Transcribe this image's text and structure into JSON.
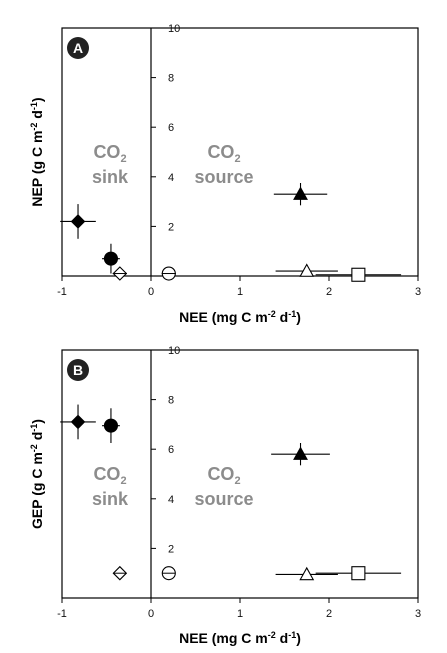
{
  "chart_data": [
    {
      "type": "scatter",
      "panel_label": "A",
      "xlabel": {
        "pre": "NEE (mg C m",
        "sup1": "-2",
        "mid": " d",
        "sup2": "-1",
        "post": ")"
      },
      "ylabel": {
        "pre": "NEP (g C m",
        "sup1": "-2",
        "mid": " d",
        "sup2": "-1",
        "post": ")"
      },
      "xlim": [
        -1,
        3
      ],
      "ylim": [
        0,
        10
      ],
      "xticks": [
        -1,
        0,
        1,
        2,
        3
      ],
      "yticks": [
        2,
        4,
        6,
        8,
        10
      ],
      "sink_label": {
        "line1": "CO",
        "sub": "2",
        "line2": "sink"
      },
      "source_label": {
        "line1": "CO",
        "sub": "2",
        "line2": "source"
      },
      "points": [
        {
          "marker": "diamond-filled",
          "x": -0.82,
          "y": 2.2,
          "xerr": 0.2,
          "yerr": 0.7
        },
        {
          "marker": "circle-filled",
          "x": -0.45,
          "y": 0.7,
          "xerr": 0.1,
          "yerr": 0.6
        },
        {
          "marker": "diamond-crossed-open",
          "x": -0.35,
          "y": 0.1,
          "xerr": 0.08,
          "yerr": 0.05
        },
        {
          "marker": "circle-crossed-open",
          "x": 0.2,
          "y": 0.1,
          "xerr": 0.08,
          "yerr": 0.05
        },
        {
          "marker": "triangle-filled",
          "x": 1.68,
          "y": 3.3,
          "xerr": 0.3,
          "yerr": 0.45
        },
        {
          "marker": "triangle-open",
          "x": 1.75,
          "y": 0.2,
          "xerr": 0.35,
          "yerr": 0.1
        },
        {
          "marker": "square-open",
          "x": 2.33,
          "y": 0.05,
          "xerr": 0.48,
          "yerr": 0.05
        }
      ]
    },
    {
      "type": "scatter",
      "panel_label": "B",
      "xlabel": {
        "pre": "NEE (mg C m",
        "sup1": "-2",
        "mid": " d",
        "sup2": "-1",
        "post": ")"
      },
      "ylabel": {
        "pre": "GEP (g C m",
        "sup1": "-2",
        "mid": " d",
        "sup2": "-1",
        "post": ")"
      },
      "xlim": [
        -1,
        3
      ],
      "ylim": [
        0,
        10
      ],
      "xticks": [
        -1,
        0,
        1,
        2,
        3
      ],
      "yticks": [
        2,
        4,
        6,
        8,
        10
      ],
      "sink_label": {
        "line1": "CO",
        "sub": "2",
        "line2": "sink"
      },
      "source_label": {
        "line1": "CO",
        "sub": "2",
        "line2": "source"
      },
      "points": [
        {
          "marker": "diamond-filled",
          "x": -0.82,
          "y": 7.1,
          "xerr": 0.2,
          "yerr": 0.7
        },
        {
          "marker": "circle-filled",
          "x": -0.45,
          "y": 6.95,
          "xerr": 0.1,
          "yerr": 0.7
        },
        {
          "marker": "diamond-crossed-open",
          "x": -0.35,
          "y": 1.0,
          "xerr": 0.06,
          "yerr": 0.05
        },
        {
          "marker": "circle-crossed-open",
          "x": 0.2,
          "y": 1.0,
          "xerr": 0.06,
          "yerr": 0.05
        },
        {
          "marker": "triangle-filled",
          "x": 1.68,
          "y": 5.8,
          "xerr": 0.33,
          "yerr": 0.45
        },
        {
          "marker": "triangle-open",
          "x": 1.75,
          "y": 0.95,
          "xerr": 0.35,
          "yerr": 0.05
        },
        {
          "marker": "square-open",
          "x": 2.33,
          "y": 1.0,
          "xerr": 0.48,
          "yerr": 0.05
        }
      ]
    }
  ]
}
